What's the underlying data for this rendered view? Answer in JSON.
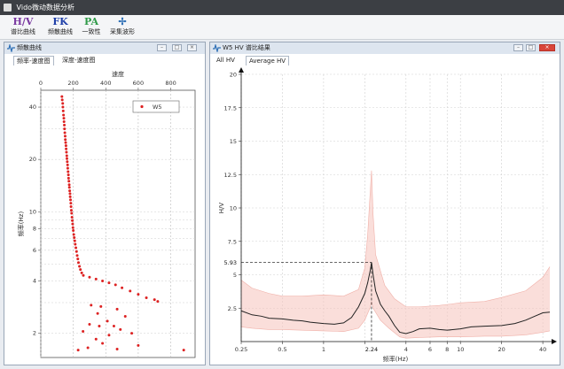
{
  "window": {
    "title": "Vido微动数据分析"
  },
  "toolbar": {
    "items": [
      {
        "icon": "H/V",
        "label": "谱比曲线",
        "color": "#7a3aa0"
      },
      {
        "icon": "FK",
        "label": "频散曲线",
        "color": "#1f3fa8"
      },
      {
        "icon": "PA",
        "label": "一致性",
        "color": "#2f9a48"
      },
      {
        "icon": "✢",
        "label": "采集波形",
        "color": "#2e6fb5"
      }
    ]
  },
  "left_panel": {
    "title": "频散曲线",
    "tabs": [
      "频率-速度图",
      "深度-速度图"
    ]
  },
  "right_panel": {
    "title": "W5 HV 谱比结果",
    "tabs": [
      "All HV",
      "Average HV"
    ]
  },
  "chart_data": [
    {
      "type": "scatter",
      "xlabel": "速度",
      "ylabel": "频率(Hz)",
      "xlim": [
        0,
        950
      ],
      "x_ticks": [
        0,
        200,
        400,
        600,
        800
      ],
      "y_scale": "log",
      "ylim": [
        1.45,
        50
      ],
      "y_ticks": [
        2,
        4,
        6,
        8,
        10,
        20,
        40
      ],
      "legend": {
        "entries": [
          "W5"
        ],
        "position": "top-right"
      },
      "series": [
        {
          "name": "W5",
          "color": "#dd2222",
          "points": [
            [
              130,
              46
            ],
            [
              132,
              44
            ],
            [
              135,
              42
            ],
            [
              136,
              40
            ],
            [
              138,
              38
            ],
            [
              140,
              36
            ],
            [
              142,
              34.5
            ],
            [
              143,
              33
            ],
            [
              145,
              31.5
            ],
            [
              146,
              30
            ],
            [
              148,
              28.5
            ],
            [
              150,
              27.2
            ],
            [
              151,
              26
            ],
            [
              153,
              25
            ],
            [
              155,
              24
            ],
            [
              156,
              23
            ],
            [
              158,
              22
            ],
            [
              160,
              21
            ],
            [
              161,
              20.2
            ],
            [
              163,
              19.4
            ],
            [
              165,
              18.6
            ],
            [
              166,
              17.8
            ],
            [
              168,
              17
            ],
            [
              170,
              16.3
            ],
            [
              171,
              15.6
            ],
            [
              173,
              15
            ],
            [
              175,
              14.3
            ],
            [
              176,
              13.8
            ],
            [
              178,
              13.2
            ],
            [
              180,
              12.7
            ],
            [
              181,
              12.2
            ],
            [
              183,
              11.7
            ],
            [
              185,
              11.2
            ],
            [
              186,
              10.7
            ],
            [
              188,
              10.2
            ],
            [
              190,
              9.8
            ],
            [
              192,
              9.3
            ],
            [
              194,
              8.9
            ],
            [
              196,
              8.5
            ],
            [
              198,
              8.1
            ],
            [
              200,
              7.8
            ],
            [
              203,
              7.4
            ],
            [
              206,
              7.1
            ],
            [
              209,
              6.8
            ],
            [
              212,
              6.5
            ],
            [
              216,
              6.2
            ],
            [
              220,
              5.9
            ],
            [
              224,
              5.6
            ],
            [
              228,
              5.35
            ],
            [
              232,
              5.1
            ],
            [
              238,
              4.85
            ],
            [
              244,
              4.65
            ],
            [
              252,
              4.45
            ],
            [
              262,
              4.3
            ],
            [
              300,
              4.2
            ],
            [
              340,
              4.1
            ],
            [
              380,
              4.0
            ],
            [
              420,
              3.9
            ],
            [
              460,
              3.8
            ],
            [
              500,
              3.65
            ],
            [
              550,
              3.5
            ],
            [
              600,
              3.35
            ],
            [
              650,
              3.2
            ],
            [
              700,
              3.12
            ],
            [
              720,
              3.05
            ],
            [
              310,
              2.9
            ],
            [
              370,
              2.85
            ],
            [
              350,
              2.6
            ],
            [
              470,
              2.75
            ],
            [
              520,
              2.5
            ],
            [
              410,
              2.35
            ],
            [
              300,
              2.25
            ],
            [
              360,
              2.2
            ],
            [
              450,
              2.2
            ],
            [
              260,
              2.05
            ],
            [
              490,
              2.1
            ],
            [
              420,
              1.95
            ],
            [
              560,
              2.0
            ],
            [
              340,
              1.85
            ],
            [
              290,
              1.65
            ],
            [
              380,
              1.75
            ],
            [
              230,
              1.6
            ],
            [
              600,
              1.7
            ],
            [
              470,
              1.62
            ],
            [
              880,
              1.6
            ]
          ]
        }
      ]
    },
    {
      "type": "line",
      "xlabel": "频率(Hz)",
      "ylabel": "H/V",
      "x_scale": "log",
      "xlim": [
        0.25,
        45
      ],
      "x_ticks": [
        0.25,
        0.5,
        1,
        2,
        4,
        6,
        8,
        10,
        20,
        40
      ],
      "x_tick_labels": [
        "0.25",
        "0.5",
        "1",
        "2",
        "4",
        "6",
        "8",
        "10",
        "20",
        "40"
      ],
      "ylim": [
        0,
        20
      ],
      "y_ticks": [
        2.5,
        5,
        7.5,
        10,
        12.5,
        15,
        17.5,
        20
      ],
      "peak": {
        "x": 2.24,
        "y": 5.93,
        "x_label": "2.24",
        "y_label": "5.93"
      },
      "series": [
        {
          "name": "Average HV",
          "color": "#222222",
          "x": [
            0.25,
            0.3,
            0.35,
            0.4,
            0.5,
            0.6,
            0.7,
            0.8,
            1.0,
            1.2,
            1.4,
            1.6,
            1.8,
            2.0,
            2.1,
            2.2,
            2.24,
            2.3,
            2.4,
            2.6,
            2.8,
            3.0,
            3.3,
            3.6,
            4.0,
            4.5,
            5.0,
            6.0,
            7.0,
            8.0,
            10,
            12,
            15,
            20,
            25,
            30,
            35,
            40,
            45
          ],
          "y": [
            2.3,
            2.0,
            1.9,
            1.75,
            1.7,
            1.6,
            1.55,
            1.45,
            1.35,
            1.3,
            1.4,
            1.8,
            2.6,
            3.6,
            4.4,
            5.4,
            5.93,
            5.0,
            3.8,
            2.8,
            2.3,
            1.9,
            1.2,
            0.7,
            0.6,
            0.75,
            0.95,
            1.0,
            0.9,
            0.85,
            0.95,
            1.1,
            1.15,
            1.2,
            1.35,
            1.6,
            1.9,
            2.15,
            2.2
          ]
        },
        {
          "name": "band-upper",
          "color": "#f6c8c2",
          "x": [
            0.25,
            0.3,
            0.4,
            0.5,
            0.7,
            1.0,
            1.4,
            1.8,
            2.0,
            2.1,
            2.2,
            2.24,
            2.3,
            2.4,
            2.8,
            3.3,
            4.0,
            5.0,
            7.0,
            10,
            15,
            20,
            30,
            40,
            45
          ],
          "y": [
            4.6,
            4.0,
            3.6,
            3.4,
            3.4,
            3.5,
            3.4,
            3.9,
            5.5,
            8.0,
            11.5,
            12.8,
            9.5,
            6.5,
            4.2,
            3.2,
            2.6,
            2.6,
            2.7,
            2.9,
            3.0,
            3.3,
            3.8,
            4.8,
            5.6
          ]
        },
        {
          "name": "band-lower",
          "color": "#f6c8c2",
          "x": [
            0.25,
            0.3,
            0.4,
            0.5,
            0.7,
            1.0,
            1.4,
            1.8,
            2.0,
            2.2,
            2.24,
            2.3,
            2.6,
            3.0,
            3.6,
            4.0,
            5.0,
            7.0,
            10,
            15,
            20,
            30,
            40,
            45
          ],
          "y": [
            1.1,
            1.0,
            0.9,
            0.9,
            0.85,
            0.8,
            0.75,
            1.0,
            1.6,
            2.6,
            3.0,
            2.5,
            1.6,
            1.0,
            0.35,
            0.25,
            0.3,
            0.35,
            0.35,
            0.4,
            0.4,
            0.5,
            0.7,
            0.8
          ]
        }
      ]
    }
  ]
}
